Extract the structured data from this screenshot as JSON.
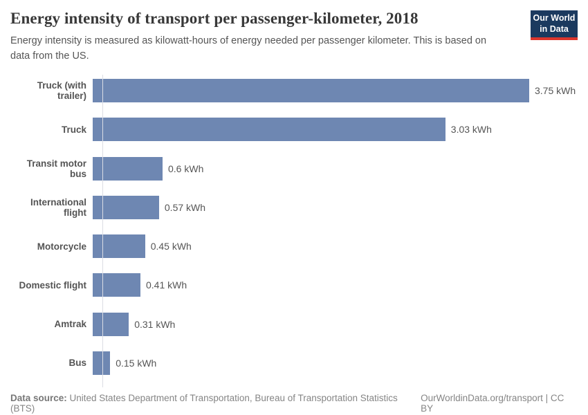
{
  "header": {
    "title": "Energy intensity of transport per passenger-kilometer, 2018",
    "subtitle": "Energy intensity is measured as kilowatt-hours of energy needed per passenger kilometer. This is based on data from the US."
  },
  "logo": {
    "line1": "Our World",
    "line2": "in Data",
    "bg_color": "#1b3a5f",
    "accent_color": "#dc352c"
  },
  "chart_data": {
    "type": "bar",
    "orientation": "horizontal",
    "title": "Energy intensity of transport per passenger-kilometer, 2018",
    "xlabel": "",
    "ylabel": "",
    "unit": "kWh",
    "xlim": [
      0,
      3.75
    ],
    "grid": false,
    "bar_color": "#6e87b2",
    "categories": [
      "Truck (with trailer)",
      "Truck",
      "Transit motor bus",
      "International flight",
      "Motorcycle",
      "Domestic flight",
      "Amtrak",
      "Bus"
    ],
    "values": [
      3.75,
      3.03,
      0.6,
      0.57,
      0.45,
      0.41,
      0.31,
      0.15
    ],
    "value_labels": [
      "3.75 kWh",
      "3.03 kWh",
      "0.6 kWh",
      "0.57 kWh",
      "0.45 kWh",
      "0.41 kWh",
      "0.31 kWh",
      "0.15 kWh"
    ]
  },
  "footer": {
    "datasource_label": "Data source:",
    "datasource_text": " United States Department of Transportation, Bureau of Transportation Statistics (BTS)",
    "credit": "OurWorldinData.org/transport | CC BY"
  }
}
